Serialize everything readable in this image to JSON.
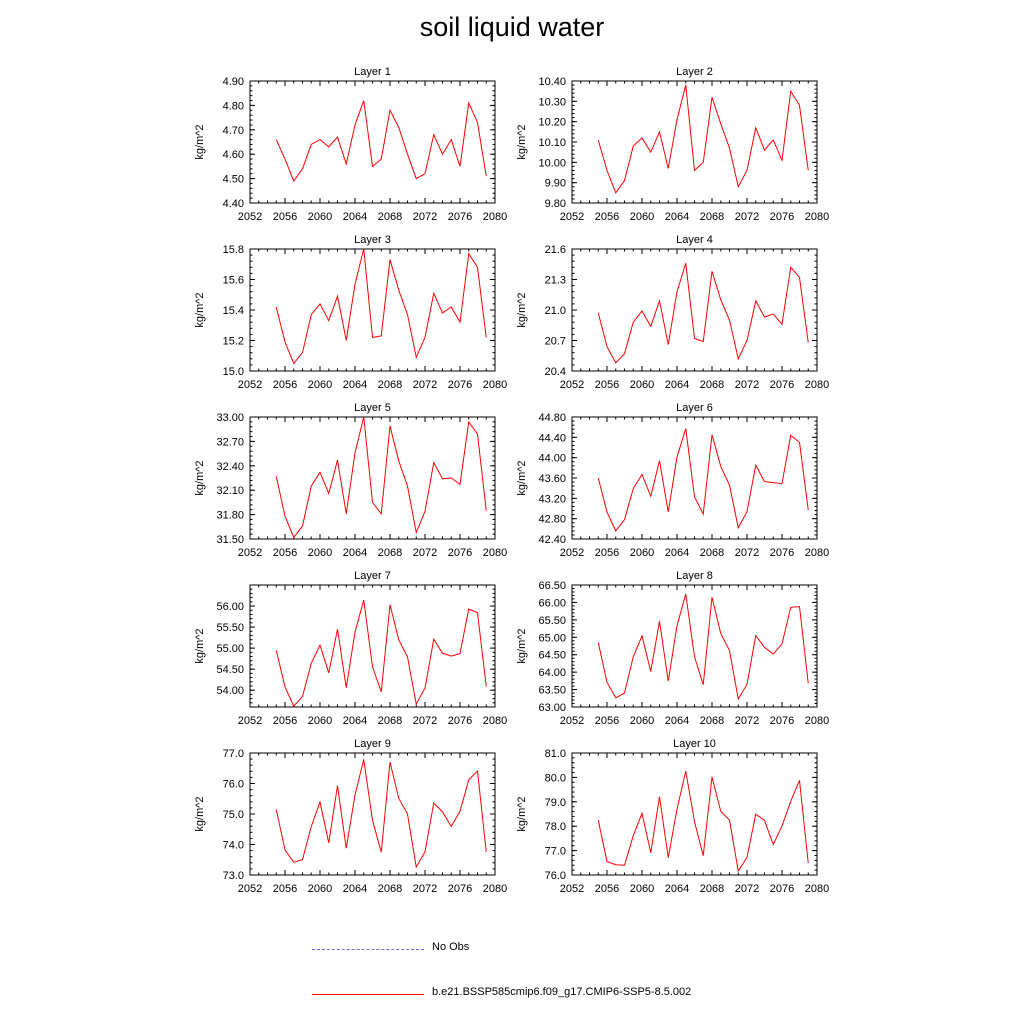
{
  "title": "soil liquid water",
  "colors": {
    "model": "#ff0000",
    "obs": "#6f6fd6",
    "axis": "#000000"
  },
  "legend": [
    {
      "label": "No Obs",
      "style": "dashed",
      "color": "#6f6fd6"
    },
    {
      "label": "b.e21.BSSP585cmip6.f09_g17.CMIP6-SSP5-8.5.002",
      "style": "solid",
      "color": "#ff0000"
    }
  ],
  "chart_data": [
    {
      "type": "line",
      "title": "Layer 1",
      "xlabel": "",
      "ylabel": "kg/m^2",
      "xlim": [
        2052,
        2080
      ],
      "xticks": [
        2052,
        2056,
        2060,
        2064,
        2068,
        2072,
        2076,
        2080
      ],
      "ylim": [
        4.4,
        4.9
      ],
      "yticks": [
        "4.40",
        "4.50",
        "4.60",
        "4.70",
        "4.80",
        "4.90"
      ],
      "x": [
        2055,
        2056,
        2057,
        2058,
        2059,
        2060,
        2061,
        2062,
        2063,
        2064,
        2065,
        2066,
        2067,
        2068,
        2069,
        2070,
        2071,
        2072,
        2073,
        2074,
        2075,
        2076,
        2077,
        2078,
        2079
      ],
      "series": [
        {
          "name": "b.e21.BSSP585cmip6.f09_g17.CMIP6-SSP5-8.5.002",
          "values": [
            4.66,
            4.58,
            4.49,
            4.54,
            4.64,
            4.66,
            4.63,
            4.67,
            4.56,
            4.72,
            4.82,
            4.55,
            4.58,
            4.78,
            4.71,
            4.6,
            4.5,
            4.52,
            4.68,
            4.6,
            4.66,
            4.55,
            4.81,
            4.73,
            4.51
          ]
        }
      ]
    },
    {
      "type": "line",
      "title": "Layer 2",
      "xlabel": "",
      "ylabel": "kg/m^2",
      "xlim": [
        2052,
        2080
      ],
      "xticks": [
        2052,
        2056,
        2060,
        2064,
        2068,
        2072,
        2076,
        2080
      ],
      "ylim": [
        9.8,
        10.4
      ],
      "yticks": [
        "9.80",
        "9.90",
        "10.00",
        "10.10",
        "10.20",
        "10.30",
        "10.40"
      ],
      "x": [
        2055,
        2056,
        2057,
        2058,
        2059,
        2060,
        2061,
        2062,
        2063,
        2064,
        2065,
        2066,
        2067,
        2068,
        2069,
        2070,
        2071,
        2072,
        2073,
        2074,
        2075,
        2076,
        2077,
        2078,
        2079
      ],
      "series": [
        {
          "name": "b.e21.BSSP585cmip6.f09_g17.CMIP6-SSP5-8.5.002",
          "values": [
            10.11,
            9.96,
            9.85,
            9.91,
            10.08,
            10.12,
            10.05,
            10.15,
            9.97,
            10.21,
            10.38,
            9.96,
            10.0,
            10.32,
            10.19,
            10.07,
            9.88,
            9.96,
            10.17,
            10.06,
            10.11,
            10.01,
            10.35,
            10.28,
            9.96
          ]
        }
      ]
    },
    {
      "type": "line",
      "title": "Layer 3",
      "xlabel": "",
      "ylabel": "kg/m^2",
      "xlim": [
        2052,
        2080
      ],
      "xticks": [
        2052,
        2056,
        2060,
        2064,
        2068,
        2072,
        2076,
        2080
      ],
      "ylim": [
        15.0,
        15.8
      ],
      "yticks": [
        "15.0",
        "15.2",
        "15.4",
        "15.6",
        "15.8"
      ],
      "x": [
        2055,
        2056,
        2057,
        2058,
        2059,
        2060,
        2061,
        2062,
        2063,
        2064,
        2065,
        2066,
        2067,
        2068,
        2069,
        2070,
        2071,
        2072,
        2073,
        2074,
        2075,
        2076,
        2077,
        2078,
        2079
      ],
      "series": [
        {
          "name": "b.e21.BSSP585cmip6.f09_g17.CMIP6-SSP5-8.5.002",
          "values": [
            15.42,
            15.19,
            15.05,
            15.12,
            15.37,
            15.44,
            15.33,
            15.49,
            15.2,
            15.57,
            15.8,
            15.22,
            15.23,
            15.73,
            15.53,
            15.37,
            15.09,
            15.22,
            15.51,
            15.38,
            15.42,
            15.32,
            15.77,
            15.68,
            15.22
          ]
        }
      ]
    },
    {
      "type": "line",
      "title": "Layer 4",
      "xlabel": "",
      "ylabel": "kg/m^2",
      "xlim": [
        2052,
        2080
      ],
      "xticks": [
        2052,
        2056,
        2060,
        2064,
        2068,
        2072,
        2076,
        2080
      ],
      "ylim": [
        20.4,
        21.6
      ],
      "yticks": [
        "20.4",
        "20.7",
        "21.0",
        "21.3",
        "21.6"
      ],
      "x": [
        2055,
        2056,
        2057,
        2058,
        2059,
        2060,
        2061,
        2062,
        2063,
        2064,
        2065,
        2066,
        2067,
        2068,
        2069,
        2070,
        2071,
        2072,
        2073,
        2074,
        2075,
        2076,
        2077,
        2078,
        2079
      ],
      "series": [
        {
          "name": "b.e21.BSSP585cmip6.f09_g17.CMIP6-SSP5-8.5.002",
          "values": [
            20.97,
            20.64,
            20.48,
            20.57,
            20.88,
            20.99,
            20.84,
            21.09,
            20.66,
            21.18,
            21.46,
            20.72,
            20.69,
            21.38,
            21.1,
            20.9,
            20.52,
            20.7,
            21.09,
            20.93,
            20.96,
            20.86,
            21.42,
            21.32,
            20.68
          ]
        }
      ]
    },
    {
      "type": "line",
      "title": "Layer 5",
      "xlabel": "",
      "ylabel": "kg/m^2",
      "xlim": [
        2052,
        2080
      ],
      "xticks": [
        2052,
        2056,
        2060,
        2064,
        2068,
        2072,
        2076,
        2080
      ],
      "ylim": [
        31.5,
        33.0
      ],
      "yticks": [
        "31.50",
        "31.80",
        "32.10",
        "32.40",
        "32.70",
        "33.00"
      ],
      "x": [
        2055,
        2056,
        2057,
        2058,
        2059,
        2060,
        2061,
        2062,
        2063,
        2064,
        2065,
        2066,
        2067,
        2068,
        2069,
        2070,
        2071,
        2072,
        2073,
        2074,
        2075,
        2076,
        2077,
        2078,
        2079
      ],
      "series": [
        {
          "name": "b.e21.BSSP585cmip6.f09_g17.CMIP6-SSP5-8.5.002",
          "values": [
            32.27,
            31.78,
            31.52,
            31.66,
            32.15,
            32.32,
            32.06,
            32.47,
            31.81,
            32.56,
            33.0,
            31.95,
            31.81,
            32.89,
            32.46,
            32.15,
            31.58,
            31.84,
            32.44,
            32.24,
            32.25,
            32.17,
            32.94,
            32.79,
            31.85
          ]
        }
      ]
    },
    {
      "type": "line",
      "title": "Layer 6",
      "xlabel": "",
      "ylabel": "kg/m^2",
      "xlim": [
        2052,
        2080
      ],
      "xticks": [
        2052,
        2056,
        2060,
        2064,
        2068,
        2072,
        2076,
        2080
      ],
      "ylim": [
        42.4,
        44.8
      ],
      "yticks": [
        "42.40",
        "42.80",
        "43.20",
        "43.60",
        "44.00",
        "44.40",
        "44.80"
      ],
      "x": [
        2055,
        2056,
        2057,
        2058,
        2059,
        2060,
        2061,
        2062,
        2063,
        2064,
        2065,
        2066,
        2067,
        2068,
        2069,
        2070,
        2071,
        2072,
        2073,
        2074,
        2075,
        2076,
        2077,
        2078,
        2079
      ],
      "series": [
        {
          "name": "b.e21.BSSP585cmip6.f09_g17.CMIP6-SSP5-8.5.002",
          "values": [
            43.6,
            42.93,
            42.56,
            42.78,
            43.39,
            43.67,
            43.24,
            43.94,
            42.93,
            44.01,
            44.57,
            43.23,
            42.89,
            44.45,
            43.83,
            43.46,
            42.62,
            42.94,
            43.85,
            43.53,
            43.51,
            43.49,
            44.44,
            44.3,
            42.97
          ]
        }
      ]
    },
    {
      "type": "line",
      "title": "Layer 7",
      "xlabel": "",
      "ylabel": "kg/m^2",
      "xlim": [
        2052,
        2080
      ],
      "xticks": [
        2052,
        2056,
        2060,
        2064,
        2068,
        2072,
        2076,
        2080
      ],
      "ylim": [
        53.6,
        56.5
      ],
      "yticks": [
        "54.00",
        "54.50",
        "55.00",
        "55.50",
        "56.00"
      ],
      "x": [
        2055,
        2056,
        2057,
        2058,
        2059,
        2060,
        2061,
        2062,
        2063,
        2064,
        2065,
        2066,
        2067,
        2068,
        2069,
        2070,
        2071,
        2072,
        2073,
        2074,
        2075,
        2076,
        2077,
        2078,
        2079
      ],
      "series": [
        {
          "name": "b.e21.BSSP585cmip6.f09_g17.CMIP6-SSP5-8.5.002",
          "values": [
            54.95,
            54.08,
            53.62,
            53.85,
            54.64,
            55.07,
            54.41,
            55.45,
            54.06,
            55.38,
            56.14,
            54.56,
            53.96,
            56.03,
            55.2,
            54.79,
            53.67,
            54.05,
            55.21,
            54.88,
            54.81,
            54.87,
            55.93,
            55.84,
            54.09
          ]
        }
      ]
    },
    {
      "type": "line",
      "title": "Layer 8",
      "xlabel": "",
      "ylabel": "kg/m^2",
      "xlim": [
        2052,
        2080
      ],
      "xticks": [
        2052,
        2056,
        2060,
        2064,
        2068,
        2072,
        2076,
        2080
      ],
      "ylim": [
        63.0,
        66.5
      ],
      "yticks": [
        "63.00",
        "63.50",
        "64.00",
        "64.50",
        "65.00",
        "65.50",
        "66.00",
        "66.50"
      ],
      "x": [
        2055,
        2056,
        2057,
        2058,
        2059,
        2060,
        2061,
        2062,
        2063,
        2064,
        2065,
        2066,
        2067,
        2068,
        2069,
        2070,
        2071,
        2072,
        2073,
        2074,
        2075,
        2076,
        2077,
        2078,
        2079
      ],
      "series": [
        {
          "name": "b.e21.BSSP585cmip6.f09_g17.CMIP6-SSP5-8.5.002",
          "values": [
            64.85,
            63.71,
            63.26,
            63.4,
            64.44,
            65.04,
            64.02,
            65.46,
            63.74,
            65.33,
            66.24,
            64.44,
            63.64,
            66.15,
            65.11,
            64.62,
            63.23,
            63.65,
            65.05,
            64.71,
            64.52,
            64.81,
            65.86,
            65.88,
            63.68
          ]
        }
      ]
    },
    {
      "type": "line",
      "title": "Layer 9",
      "xlabel": "",
      "ylabel": "kg/m^2",
      "xlim": [
        2052,
        2080
      ],
      "xticks": [
        2052,
        2056,
        2060,
        2064,
        2068,
        2072,
        2076,
        2080
      ],
      "ylim": [
        73.0,
        77.0
      ],
      "yticks": [
        "73.0",
        "74.0",
        "75.0",
        "76.0",
        "77.0"
      ],
      "x": [
        2055,
        2056,
        2057,
        2058,
        2059,
        2060,
        2061,
        2062,
        2063,
        2064,
        2065,
        2066,
        2067,
        2068,
        2069,
        2070,
        2071,
        2072,
        2073,
        2074,
        2075,
        2076,
        2077,
        2078,
        2079
      ],
      "series": [
        {
          "name": "b.e21.BSSP585cmip6.f09_g17.CMIP6-SSP5-8.5.002",
          "values": [
            75.15,
            73.82,
            73.42,
            73.5,
            74.59,
            75.39,
            74.05,
            75.93,
            73.88,
            75.62,
            76.79,
            74.79,
            73.75,
            76.7,
            75.51,
            75.0,
            73.26,
            73.76,
            75.36,
            75.07,
            74.59,
            75.09,
            76.12,
            76.41,
            73.75
          ]
        }
      ]
    },
    {
      "type": "line",
      "title": "Layer 10",
      "xlabel": "",
      "ylabel": "kg/m^2",
      "xlim": [
        2052,
        2080
      ],
      "xticks": [
        2052,
        2056,
        2060,
        2064,
        2068,
        2072,
        2076,
        2080
      ],
      "ylim": [
        76.0,
        81.0
      ],
      "yticks": [
        "76.0",
        "77.0",
        "78.0",
        "79.0",
        "80.0",
        "81.0"
      ],
      "x": [
        2055,
        2056,
        2057,
        2058,
        2059,
        2060,
        2061,
        2062,
        2063,
        2064,
        2065,
        2066,
        2067,
        2068,
        2069,
        2070,
        2071,
        2072,
        2073,
        2074,
        2075,
        2076,
        2077,
        2078,
        2079
      ],
      "series": [
        {
          "name": "b.e21.BSSP585cmip6.f09_g17.CMIP6-SSP5-8.5.002",
          "values": [
            78.25,
            76.55,
            76.42,
            76.4,
            77.61,
            78.53,
            76.91,
            79.21,
            76.71,
            78.7,
            80.26,
            78.19,
            76.79,
            80.02,
            78.61,
            78.25,
            76.17,
            76.72,
            78.49,
            78.24,
            77.25,
            78.01,
            79.02,
            79.88,
            76.48
          ]
        }
      ]
    }
  ]
}
